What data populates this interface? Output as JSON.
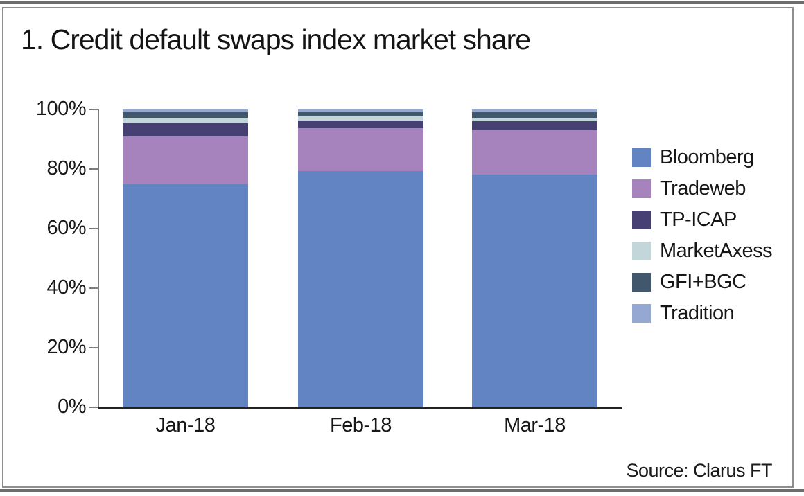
{
  "page": {
    "title": "1. Credit default swaps index market share",
    "source_note": "Source: Clarus FT"
  },
  "chart_data": {
    "type": "bar",
    "subtype": "stacked-100-percent-column",
    "title": "1. Credit default swaps index market share",
    "categories": [
      "Jan-18",
      "Feb-18",
      "Mar-18"
    ],
    "series": [
      {
        "name": "Bloomberg",
        "color": "#6384c3",
        "values": [
          74.9,
          79.3,
          78.1
        ]
      },
      {
        "name": "Tradeweb",
        "color": "#a683bd",
        "values": [
          16.0,
          14.4,
          14.9
        ]
      },
      {
        "name": "TP-ICAP",
        "color": "#474073",
        "values": [
          4.4,
          2.6,
          3.0
        ]
      },
      {
        "name": "MarketAxess",
        "color": "#c3d6da",
        "values": [
          1.9,
          1.6,
          1.0
        ]
      },
      {
        "name": "GFI+BGC",
        "color": "#41586c",
        "values": [
          1.9,
          1.3,
          2.0
        ]
      },
      {
        "name": "Tradition",
        "color": "#94a8d2",
        "values": [
          0.9,
          0.8,
          1.0
        ]
      }
    ],
    "stack_order_bottom_to_top": [
      "Bloomberg",
      "Tradeweb",
      "TP-ICAP",
      "MarketAxess",
      "GFI+BGC",
      "Tradition"
    ],
    "xlabel": "",
    "ylabel": "",
    "ylim": [
      0,
      100
    ],
    "yticks": [
      "0%",
      "20%",
      "40%",
      "60%",
      "80%",
      "100%"
    ],
    "grid": false,
    "legend_position": "right",
    "axis_colors": {
      "y_axis": "#7c7c7c",
      "x_axis": "#222222"
    }
  }
}
